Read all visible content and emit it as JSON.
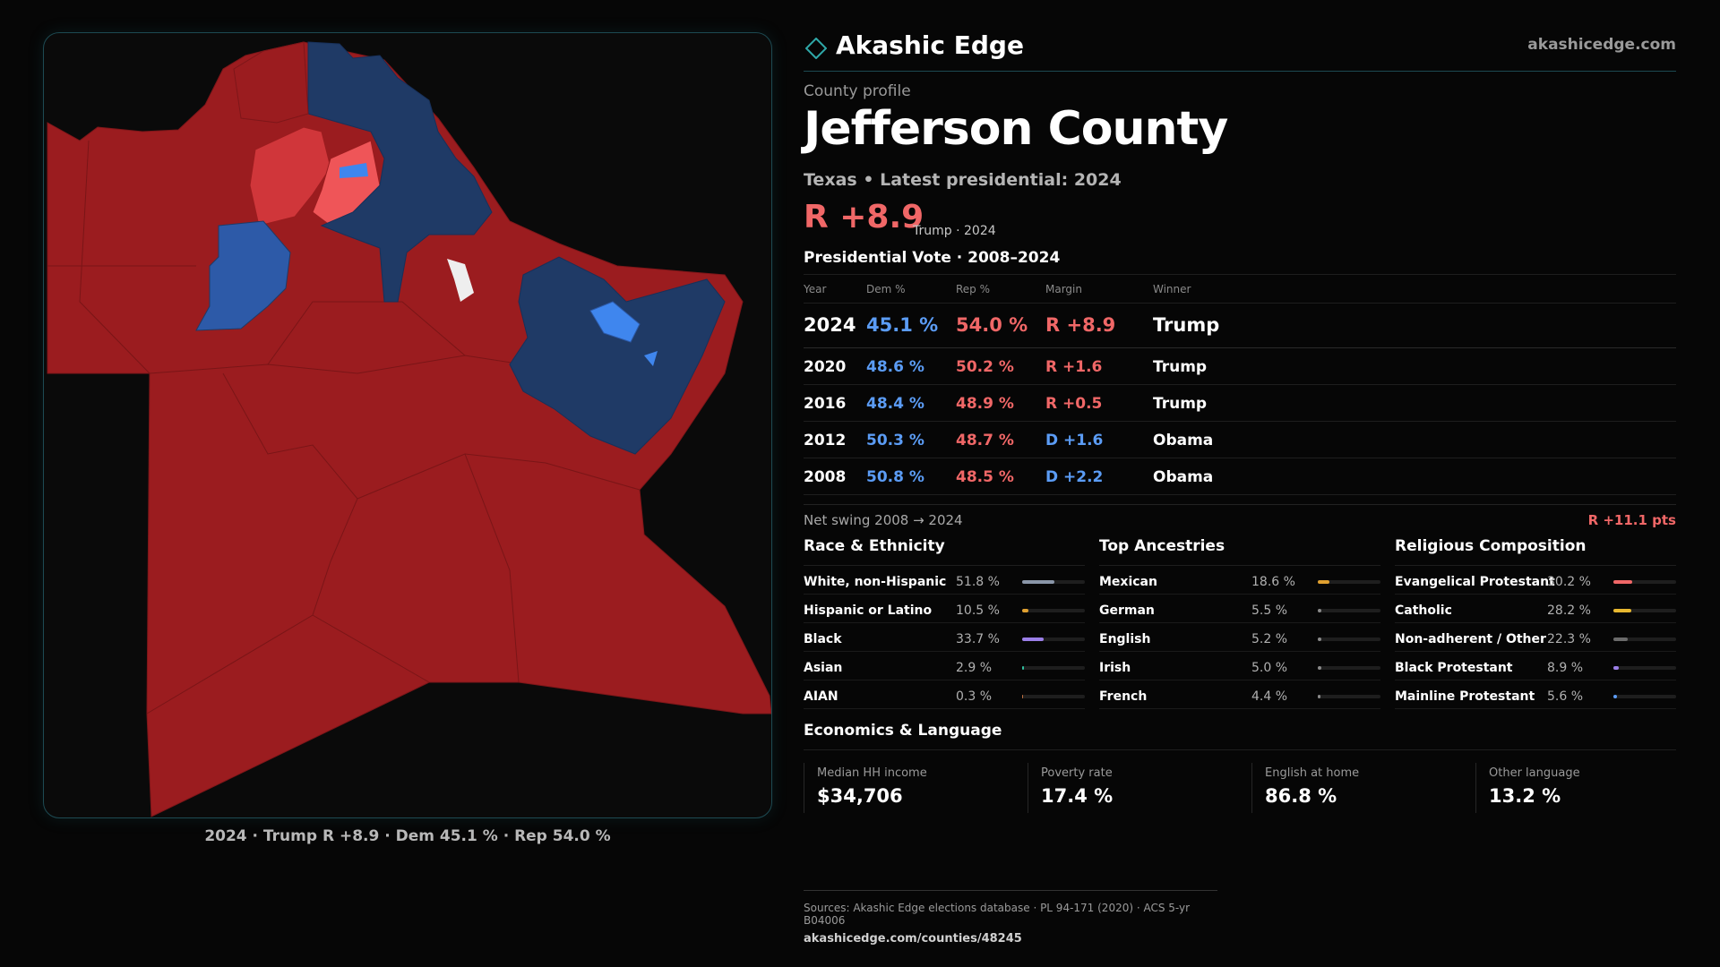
{
  "brand": {
    "name": "Akashic Edge",
    "url": "akashicedge.com"
  },
  "profile": {
    "eyebrow": "County profile",
    "county": "Jefferson County",
    "subline": "Texas • Latest presidential: 2024",
    "margin_big": "R +8.9",
    "margin_note": "Trump · 2024"
  },
  "votes": {
    "title": "Presidential Vote · 2008–2024",
    "headers": {
      "year": "Year",
      "dem": "Dem %",
      "rep": "Rep %",
      "margin": "Margin",
      "winner": "Winner"
    },
    "rows": [
      {
        "year": "2024",
        "dem": "45.1 %",
        "rep": "54.0 %",
        "margin": "R +8.9",
        "winner": "Trump"
      },
      {
        "year": "2020",
        "dem": "48.6 %",
        "rep": "50.2 %",
        "margin": "R +1.6",
        "winner": "Trump"
      },
      {
        "year": "2016",
        "dem": "48.4 %",
        "rep": "48.9 %",
        "margin": "R +0.5",
        "winner": "Trump"
      },
      {
        "year": "2012",
        "dem": "50.3 %",
        "rep": "48.7 %",
        "margin": "D +1.6",
        "winner": "Obama"
      },
      {
        "year": "2008",
        "dem": "50.8 %",
        "rep": "48.5 %",
        "margin": "D +2.2",
        "winner": "Obama"
      }
    ],
    "swing_label": "Net swing 2008 → 2024",
    "swing_value": "R +11.1 pts"
  },
  "race": {
    "title": "Race & Ethnicity",
    "items": [
      {
        "label": "White, non-Hispanic",
        "value": "51.8 %",
        "pct": 51.8,
        "color": "#8a96a8"
      },
      {
        "label": "Hispanic or Latino",
        "value": "10.5 %",
        "pct": 10.5,
        "color": "#e0a030"
      },
      {
        "label": "Black",
        "value": "33.7 %",
        "pct": 33.7,
        "color": "#9b7fe8"
      },
      {
        "label": "Asian",
        "value": "2.9 %",
        "pct": 2.9,
        "color": "#30c0a0"
      },
      {
        "label": "AIAN",
        "value": "0.3 %",
        "pct": 0.3,
        "color": "#c07040"
      }
    ]
  },
  "ancestry": {
    "title": "Top Ancestries",
    "items": [
      {
        "label": "Mexican",
        "value": "18.6 %",
        "pct": 18.6,
        "color": "#e0a030"
      },
      {
        "label": "German",
        "value": "5.5 %",
        "pct": 5.5,
        "color": "#8a8a8a"
      },
      {
        "label": "English",
        "value": "5.2 %",
        "pct": 5.2,
        "color": "#8a8a8a"
      },
      {
        "label": "Irish",
        "value": "5.0 %",
        "pct": 5.0,
        "color": "#8a8a8a"
      },
      {
        "label": "French",
        "value": "4.4 %",
        "pct": 4.4,
        "color": "#8a8a8a"
      }
    ]
  },
  "religion": {
    "title": "Religious Composition",
    "items": [
      {
        "label": "Evangelical Protestant",
        "value": "30.2 %",
        "pct": 30.2,
        "color": "#f06767"
      },
      {
        "label": "Catholic",
        "value": "28.2 %",
        "pct": 28.2,
        "color": "#e8b830"
      },
      {
        "label": "Non-adherent / Other",
        "value": "22.3 %",
        "pct": 22.3,
        "color": "#6a6a6a"
      },
      {
        "label": "Black Protestant",
        "value": "8.9 %",
        "pct": 8.9,
        "color": "#9b7fe8"
      },
      {
        "label": "Mainline Protestant",
        "value": "5.6 %",
        "pct": 5.6,
        "color": "#5b9cf5"
      }
    ]
  },
  "economics": {
    "title": "Economics & Language",
    "cards": [
      {
        "label": "Median HH income",
        "value": "$34,706"
      },
      {
        "label": "Poverty rate",
        "value": "17.4 %"
      },
      {
        "label": "English at home",
        "value": "86.8 %"
      },
      {
        "label": "Other language",
        "value": "13.2 %"
      }
    ]
  },
  "map": {
    "caption": "2024 · Trump R +8.9 · Dem 45.1 % · Rep 54.0 %",
    "colors": {
      "rep_dark": "#9b1c1f",
      "rep_mid": "#d0363a",
      "rep_light": "#ef5558",
      "dem_dark": "#1f3a66",
      "dem_mid": "#2d5aa8",
      "dem_light": "#3f86ee",
      "neutral": "#eeeeee"
    }
  },
  "sources": {
    "line": "Sources: Akashic Edge elections database · PL 94-171 (2020) · ACS 5-yr B04006",
    "url": "akashicedge.com/counties/48245"
  }
}
